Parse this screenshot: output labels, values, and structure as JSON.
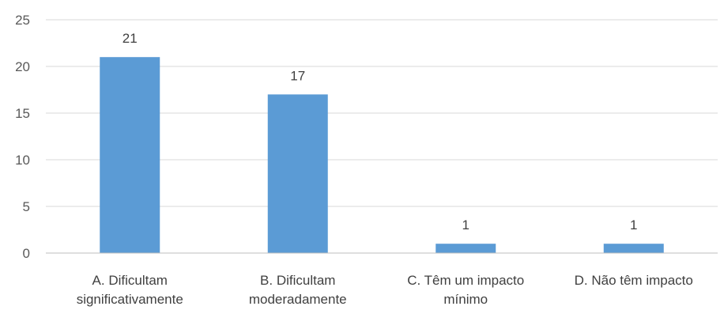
{
  "chart_data": {
    "type": "bar",
    "categories": [
      [
        "A. Dificultam",
        "significativamente"
      ],
      [
        "B. Dificultam",
        "moderadamente"
      ],
      [
        "C. Têm um impacto",
        "mínimo"
      ],
      [
        "D. Não têm impacto"
      ]
    ],
    "values": [
      21,
      17,
      1,
      1
    ],
    "data_labels": [
      "21",
      "17",
      "1",
      "1"
    ],
    "yticks": [
      "0",
      "5",
      "10",
      "15",
      "20",
      "25"
    ],
    "ylim": [
      0,
      25
    ],
    "grid": true,
    "legend": "none",
    "bar_color": "#5b9bd5",
    "title": "",
    "xlabel": "",
    "ylabel": ""
  }
}
